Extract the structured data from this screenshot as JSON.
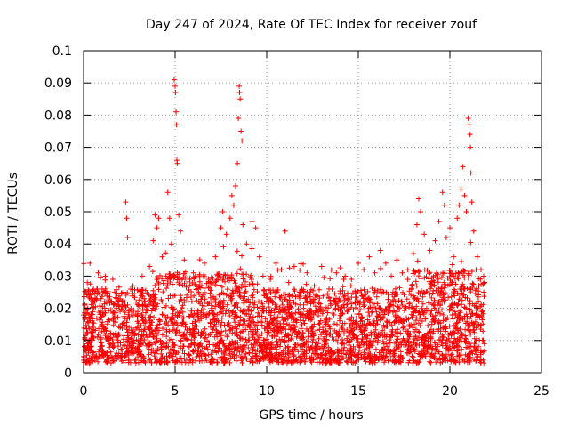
{
  "chart_data": {
    "type": "scatter",
    "title": "Day 247 of 2024, Rate Of TEC Index for receiver zouf",
    "xlabel": "GPS time / hours",
    "ylabel": "ROTI / TECUs",
    "xlim": [
      0,
      25
    ],
    "ylim": [
      0,
      0.1
    ],
    "xticks": [
      0,
      5,
      10,
      15,
      20,
      25
    ],
    "yticks": [
      0,
      0.01,
      0.02,
      0.03,
      0.04,
      0.05,
      0.06,
      0.07,
      0.08,
      0.09,
      0.1
    ],
    "xtick_labels": [
      "0",
      "5",
      "10",
      "15",
      "20",
      "25"
    ],
    "ytick_labels": [
      "0",
      "0.01",
      "0.02",
      "0.03",
      "0.04",
      "0.05",
      "0.06",
      "0.07",
      "0.08",
      "0.09",
      "0.1"
    ],
    "grid": true,
    "marker": "+",
    "marker_color": "#ff0000",
    "data_range_hours": [
      0,
      21.9
    ],
    "series": [
      {
        "name": "ROTI",
        "points": [
          [
            0.1,
            0.012
          ],
          [
            0.2,
            0.028
          ],
          [
            0.3,
            0.018
          ],
          [
            0.35,
            0.034
          ],
          [
            0.4,
            0.008
          ],
          [
            0.6,
            0.022
          ],
          [
            0.8,
            0.031
          ],
          [
            1.0,
            0.015
          ],
          [
            1.2,
            0.026
          ],
          [
            1.4,
            0.011
          ],
          [
            1.6,
            0.029
          ],
          [
            1.8,
            0.02
          ],
          [
            2.0,
            0.014
          ],
          [
            2.2,
            0.025
          ],
          [
            2.3,
            0.053
          ],
          [
            2.35,
            0.048
          ],
          [
            2.4,
            0.042
          ],
          [
            2.5,
            0.017
          ],
          [
            2.7,
            0.027
          ],
          [
            3.0,
            0.021
          ],
          [
            3.2,
            0.03
          ],
          [
            3.4,
            0.016
          ],
          [
            3.6,
            0.033
          ],
          [
            3.8,
            0.041
          ],
          [
            3.9,
            0.049
          ],
          [
            4.0,
            0.045
          ],
          [
            4.1,
            0.048
          ],
          [
            4.3,
            0.036
          ],
          [
            4.5,
            0.03
          ],
          [
            4.6,
            0.056
          ],
          [
            4.7,
            0.048
          ],
          [
            4.8,
            0.04
          ],
          [
            4.95,
            0.091
          ],
          [
            5.0,
            0.089
          ],
          [
            5.02,
            0.087
          ],
          [
            5.05,
            0.081
          ],
          [
            5.08,
            0.077
          ],
          [
            5.1,
            0.066
          ],
          [
            5.12,
            0.065
          ],
          [
            5.2,
            0.049
          ],
          [
            5.3,
            0.044
          ],
          [
            5.5,
            0.035
          ],
          [
            5.7,
            0.027
          ],
          [
            6.0,
            0.031
          ],
          [
            6.3,
            0.022
          ],
          [
            6.6,
            0.034
          ],
          [
            6.9,
            0.028
          ],
          [
            7.2,
            0.036
          ],
          [
            7.5,
            0.045
          ],
          [
            7.6,
            0.05
          ],
          [
            7.8,
            0.043
          ],
          [
            8.0,
            0.048
          ],
          [
            8.1,
            0.055
          ],
          [
            8.2,
            0.052
          ],
          [
            8.3,
            0.058
          ],
          [
            8.4,
            0.065
          ],
          [
            8.45,
            0.079
          ],
          [
            8.5,
            0.089
          ],
          [
            8.52,
            0.087
          ],
          [
            8.55,
            0.085
          ],
          [
            8.6,
            0.075
          ],
          [
            8.65,
            0.072
          ],
          [
            8.7,
            0.046
          ],
          [
            8.9,
            0.04
          ],
          [
            9.2,
            0.047
          ],
          [
            9.4,
            0.045
          ],
          [
            9.6,
            0.036
          ],
          [
            9.8,
            0.03
          ],
          [
            10.2,
            0.029
          ],
          [
            10.5,
            0.034
          ],
          [
            10.8,
            0.032
          ],
          [
            11.0,
            0.044
          ],
          [
            11.2,
            0.028
          ],
          [
            11.5,
            0.033
          ],
          [
            11.8,
            0.025
          ],
          [
            12.2,
            0.031
          ],
          [
            12.6,
            0.027
          ],
          [
            13.0,
            0.033
          ],
          [
            13.4,
            0.026
          ],
          [
            13.8,
            0.031
          ],
          [
            14.2,
            0.029
          ],
          [
            14.6,
            0.027
          ],
          [
            15.0,
            0.034
          ],
          [
            15.3,
            0.032
          ],
          [
            15.6,
            0.036
          ],
          [
            15.9,
            0.031
          ],
          [
            16.2,
            0.038
          ],
          [
            16.5,
            0.034
          ],
          [
            16.8,
            0.03
          ],
          [
            17.1,
            0.035
          ],
          [
            17.4,
            0.031
          ],
          [
            17.7,
            0.029
          ],
          [
            18.0,
            0.037
          ],
          [
            18.2,
            0.046
          ],
          [
            18.3,
            0.054
          ],
          [
            18.4,
            0.05
          ],
          [
            18.6,
            0.043
          ],
          [
            18.9,
            0.038
          ],
          [
            19.2,
            0.041
          ],
          [
            19.4,
            0.047
          ],
          [
            19.6,
            0.056
          ],
          [
            19.7,
            0.052
          ],
          [
            19.8,
            0.042
          ],
          [
            20.0,
            0.045
          ],
          [
            20.2,
            0.036
          ],
          [
            20.4,
            0.048
          ],
          [
            20.5,
            0.052
          ],
          [
            20.6,
            0.057
          ],
          [
            20.7,
            0.064
          ],
          [
            20.8,
            0.055
          ],
          [
            20.9,
            0.05
          ],
          [
            21.0,
            0.079
          ],
          [
            21.05,
            0.077
          ],
          [
            21.1,
            0.074
          ],
          [
            21.12,
            0.07
          ],
          [
            21.15,
            0.062
          ],
          [
            21.2,
            0.053
          ],
          [
            21.3,
            0.044
          ],
          [
            21.5,
            0.036
          ],
          [
            21.7,
            0.032
          ],
          [
            21.85,
            0.025
          ]
        ]
      }
    ]
  }
}
